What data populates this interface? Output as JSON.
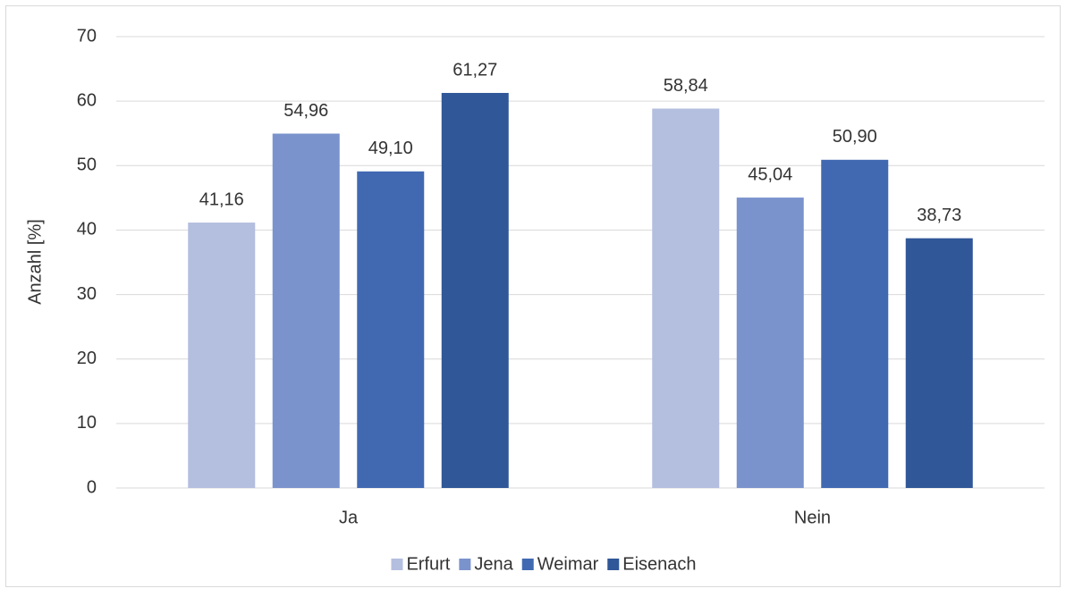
{
  "chart_data": {
    "type": "bar",
    "categories": [
      "Ja",
      "Nein"
    ],
    "y_label": "Anzahl [%]",
    "series": [
      {
        "name": "Erfurt",
        "color": "#b4bedf",
        "values": [
          41.16,
          58.84
        ],
        "value_labels": [
          "41,16",
          "58,84"
        ]
      },
      {
        "name": "Jena",
        "color": "#7b93cc",
        "values": [
          54.96,
          45.04
        ],
        "value_labels": [
          "54,96",
          "45,04"
        ]
      },
      {
        "name": "Weimar",
        "color": "#4169b2",
        "values": [
          49.1,
          50.9
        ],
        "value_labels": [
          "49,10",
          "50,90"
        ]
      },
      {
        "name": "Eisenach",
        "color": "#305797",
        "values": [
          61.27,
          38.73
        ],
        "value_labels": [
          "61,27",
          "38,73"
        ]
      }
    ],
    "ylim": [
      0,
      70
    ],
    "yticks": [
      0,
      10,
      20,
      30,
      40,
      50,
      60,
      70
    ],
    "grid": true,
    "legend": "bottom"
  }
}
